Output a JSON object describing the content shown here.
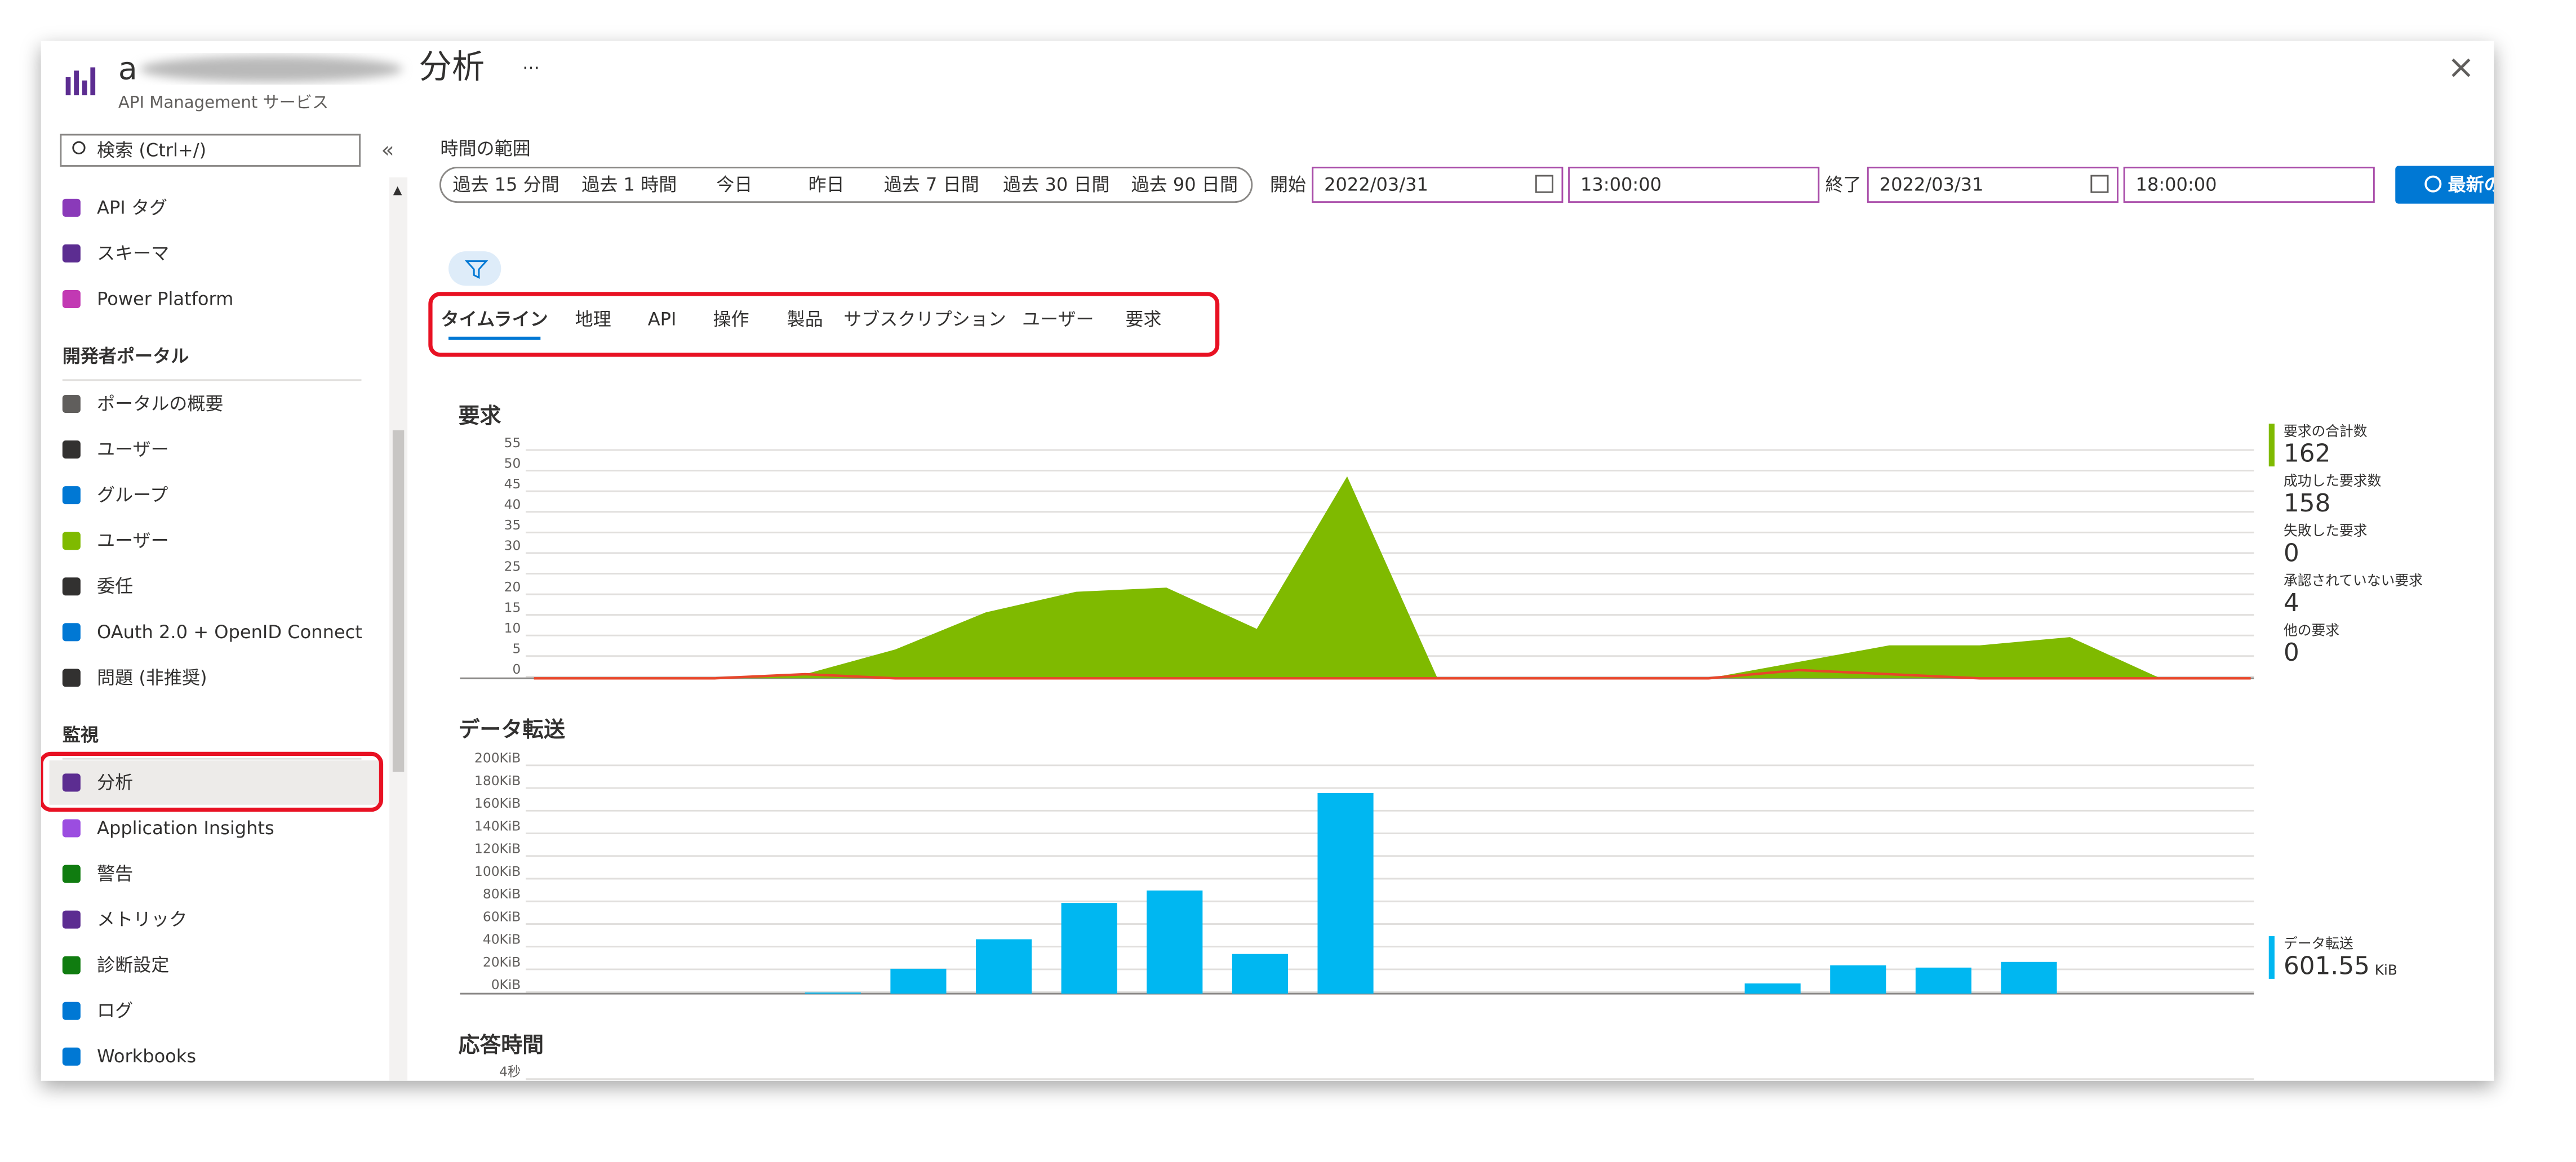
{
  "header": {
    "resource_name": "a",
    "title": "分析",
    "subtitle": "API Management サービス",
    "more": "···",
    "close": "×"
  },
  "sidebar": {
    "search": "検索 (Ctrl+/)",
    "collapse": "«",
    "groups": [
      {
        "items": [
          {
            "label": "API タグ"
          },
          {
            "label": "スキーマ"
          },
          {
            "label": "Power Platform"
          }
        ]
      },
      {
        "heading": "開発者ポータル",
        "items": [
          {
            "label": "ポータルの概要"
          },
          {
            "label": "ユーザー"
          },
          {
            "label": "グループ"
          },
          {
            "label": "ユーザー"
          },
          {
            "label": "委任"
          },
          {
            "label": "OAuth 2.0 + OpenID Connect"
          },
          {
            "label": "問題 (非推奨)"
          }
        ]
      },
      {
        "heading": "監視",
        "items": [
          {
            "label": "分析",
            "selected": true
          },
          {
            "label": "Application Insights"
          },
          {
            "label": "警告"
          },
          {
            "label": "メトリック"
          },
          {
            "label": "診断設定"
          },
          {
            "label": "ログ"
          },
          {
            "label": "Workbooks"
          }
        ]
      }
    ]
  },
  "time_range": {
    "label": "時間の範囲",
    "presets": [
      "過去 15 分間",
      "過去 1 時間",
      "今日",
      "昨日",
      "過去 7 日間",
      "過去 30 日間",
      "過去 90 日間"
    ],
    "start_label": "開始",
    "start_date": "2022/03/31",
    "start_time": "13:00:00",
    "end_label": "終了",
    "end_date": "2022/03/31",
    "end_time": "18:00:00",
    "refresh": "最新の"
  },
  "tabs": [
    {
      "label": "タイムライン",
      "active": true
    },
    {
      "label": "地理"
    },
    {
      "label": "API"
    },
    {
      "label": "操作"
    },
    {
      "label": "製品"
    },
    {
      "label": "サブスクリプション"
    },
    {
      "label": "ユーザー"
    },
    {
      "label": "要求"
    }
  ],
  "chart_data": [
    {
      "type": "area",
      "title": "要求",
      "ylim": [
        0,
        55
      ],
      "yticks": [
        0,
        5,
        10,
        15,
        20,
        25,
        30,
        35,
        40,
        45,
        50,
        55
      ],
      "grid": true,
      "series": [
        {
          "color": "#7fba00",
          "values": [
            0,
            0,
            0,
            1,
            7,
            16,
            21,
            22,
            12,
            49,
            0,
            0,
            0,
            0,
            4,
            8,
            8,
            10,
            0,
            0
          ]
        },
        {
          "color": "#e8462a",
          "values": [
            0,
            0,
            0,
            1,
            0,
            0,
            0,
            0,
            0,
            0,
            0,
            0,
            0,
            0,
            2,
            1,
            0,
            0,
            0,
            0
          ]
        }
      ],
      "stats": [
        {
          "label": "要求の合計数",
          "value": 162
        },
        {
          "label": "成功した要求数",
          "value": 158
        },
        {
          "label": "失敗した要求",
          "value": 0
        },
        {
          "label": "承認されていない要求",
          "value": 4
        },
        {
          "label": "他の要求",
          "value": 0
        }
      ],
      "stats_color": "#7fba00"
    },
    {
      "type": "bar",
      "title": "データ転送",
      "ylim": [
        0,
        200
      ],
      "grid": true,
      "color": "#00b7f1",
      "yticks": [
        {
          "value": 0,
          "label": "0KiB"
        },
        {
          "value": 20,
          "label": "20KiB"
        },
        {
          "value": 40,
          "label": "40KiB"
        },
        {
          "value": 60,
          "label": "60KiB"
        },
        {
          "value": 80,
          "label": "80KiB"
        },
        {
          "value": 100,
          "label": "100KiB"
        },
        {
          "value": 120,
          "label": "120KiB"
        },
        {
          "value": 140,
          "label": "140KiB"
        },
        {
          "value": 160,
          "label": "160KiB"
        },
        {
          "value": 180,
          "label": "180KiB"
        },
        {
          "value": 200,
          "label": "200KiB"
        }
      ],
      "values": [
        0,
        0,
        0,
        0,
        1,
        22,
        48,
        80,
        91,
        35,
        177,
        0,
        0,
        0,
        0,
        9,
        25,
        23,
        28,
        0,
        0
      ],
      "stats": [
        {
          "label": "データ転送",
          "value": 601.55,
          "unit": "KiB"
        }
      ],
      "stats_color": "#00b7f1"
    },
    {
      "type": "line",
      "title": "応答時間",
      "yticks": [
        {
          "value": 4,
          "label": "4秒"
        }
      ],
      "grid": true
    }
  ]
}
